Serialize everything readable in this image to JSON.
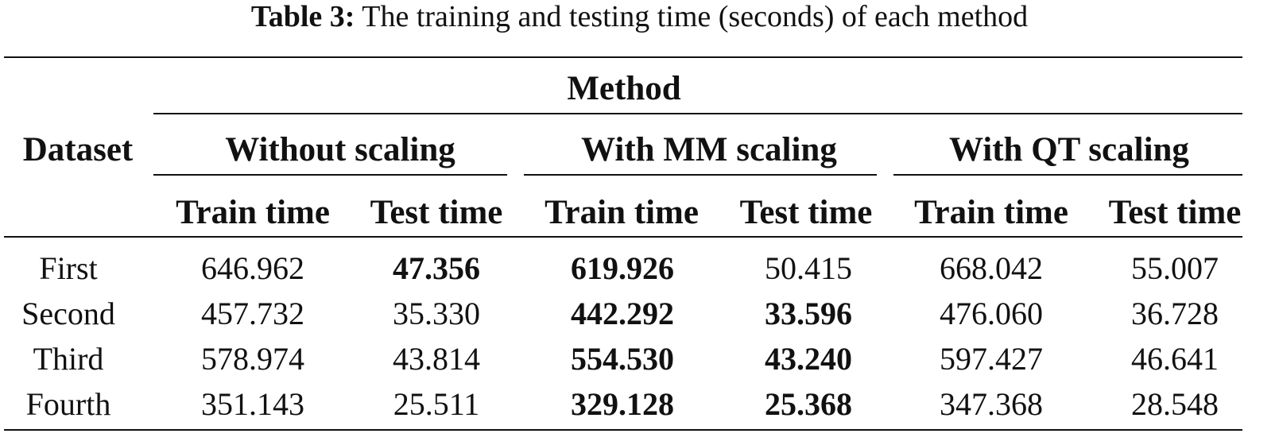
{
  "caption": {
    "label": "Table 3:",
    "text": "The training and testing time (seconds) of each method"
  },
  "header": {
    "dataset": "Dataset",
    "method": "Method",
    "groups": [
      "Without scaling",
      "With MM scaling",
      "With QT scaling"
    ],
    "subcolumns": [
      "Train time",
      "Test time",
      "Train time",
      "Test time",
      "Train time",
      "Test time"
    ]
  },
  "rows": [
    {
      "dataset": "First",
      "values": [
        "646.962",
        "47.356",
        "619.926",
        "50.415",
        "668.042",
        "55.007"
      ],
      "bold": [
        false,
        true,
        true,
        false,
        false,
        false
      ]
    },
    {
      "dataset": "Second",
      "values": [
        "457.732",
        "35.330",
        "442.292",
        "33.596",
        "476.060",
        "36.728"
      ],
      "bold": [
        false,
        false,
        true,
        true,
        false,
        false
      ]
    },
    {
      "dataset": "Third",
      "values": [
        "578.974",
        "43.814",
        "554.530",
        "43.240",
        "597.427",
        "46.641"
      ],
      "bold": [
        false,
        false,
        true,
        true,
        false,
        false
      ]
    },
    {
      "dataset": "Fourth",
      "values": [
        "351.143",
        "25.511",
        "329.128",
        "25.368",
        "347.368",
        "28.548"
      ],
      "bold": [
        false,
        false,
        true,
        true,
        false,
        false
      ]
    }
  ]
}
